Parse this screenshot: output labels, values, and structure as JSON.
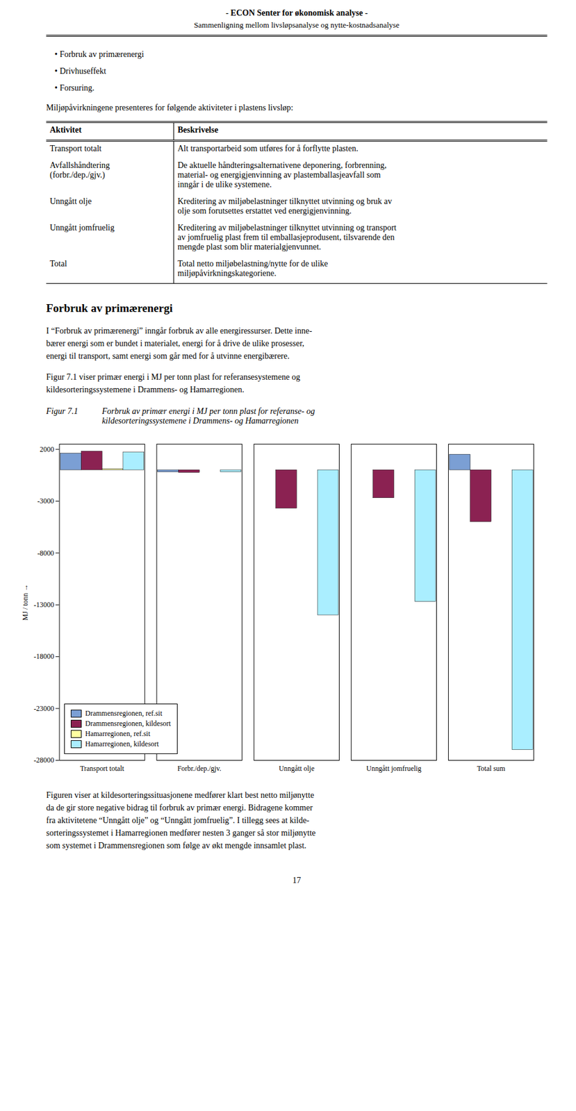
{
  "chart_data": {
    "type": "bar",
    "title": "Figur 7.1",
    "subtitle": "Forbruk av primær energi i MJ per tonn plast for referanse- og\nkildesorteringssystemene i Drammens- og Hamarregionen",
    "categories": [
      "Transport totalt",
      "Forbr./dep./gjv.",
      "Unngått olje",
      "Unngått jomfruelig",
      "Total sum"
    ],
    "series": [
      {
        "name": "Drammensregionen, ref.sit",
        "color": "#7B9FD4",
        "values": [
          1600,
          -200,
          0,
          0,
          1500
        ]
      },
      {
        "name": "Drammensregionen, kildesort",
        "color": "#8B2252",
        "values": [
          1800,
          -250,
          -3700,
          -2700,
          -5000
        ]
      },
      {
        "name": "Hamarregionen, ref.sit",
        "color": "#FFFFA0",
        "values": [
          100,
          0,
          0,
          0,
          0
        ]
      },
      {
        "name": "Hamarregionen, kildesort",
        "color": "#AAEEFF",
        "values": [
          1700,
          -200,
          -14000,
          -12700,
          -27000
        ]
      }
    ],
    "ylabel": "MJ / tonn",
    "ylim": [
      -28000,
      2500
    ],
    "yticks": [
      2000,
      -3000,
      -8000,
      -13000,
      -18000,
      -23000,
      -28000
    ],
    "grid": false,
    "legend": "lower left",
    "annotations": [
      "- ECON  Senter for økonomisk analyse -",
      "Sammenligning mellom livsløpsanalyse og nytte-kostnadsanalyse",
      "•  Forbruk av primærenergi",
      "•  Drivhuseffekt",
      "•  Forsuring.",
      "Miljøpåvirkningene presenteres for følgende aktiviteter i plastens livsløp:",
      "Aktivitet",
      "Beskrivelse",
      "Transport totalt",
      "Alt transportarbeid som utføres for å forflytte plasten.",
      "Avfallshåndtering\n(forbr./dep./gjv.)",
      "De aktuelle håndteringsalternativene deponering, forbrenning,\nmaterial- og energigjenvinning av plastemballasjeavfall som\ninngår i de ulike systemene.",
      "Unngått olje",
      "Kreditering av miljøbelastninger tilknyttet utvinning og bruk av\nolje som forutsettes erstattet ved energigjenvinning.",
      "Unngått jomfruelig",
      "Kreditering av miljøbelastninger tilknyttet utvinning og transport\nav jomfruelig plast frem til emballasjeprodusent, tilsvarende den\nmengde plast som blir materialgjenvunnet.",
      "Total",
      "Total netto miljøbelastning/nytte for de ulike\nmiljøpåvirkningskategoriene.",
      "Forbruk av primærenergi",
      "I “Forbruk av primærenergi” inngår forbruk av alle energiressurser. Dette inne-\nbærer energi som er bundet i materialet, energi for å drive de ulike prosesser,\nenergi til transport, samt energi som går med for å utvinne energibærere.",
      "Figur 7.1 viser primær energi i MJ per tonn plast for referansesystemene og\nkildesorteringssystemene i Drammens- og Hamarregionen.",
      "Figuren viser at kildesorteringssituasjonene medfører klart best netto miljønytte\nda de gir store negative bidrag til forbruk av primær energi. Bidragene kommer\nfra aktivitetene “Unngått olje” og “Unngått jomfruelig”. I tillegg sees at kilde-\nsorteringssystemet i Hamarregionen medfører nesten 3 ganger så stor miljønytte\nsom systemet i Drammensregionen som følge av økt mengde innsamlet plast.",
      "17"
    ]
  }
}
